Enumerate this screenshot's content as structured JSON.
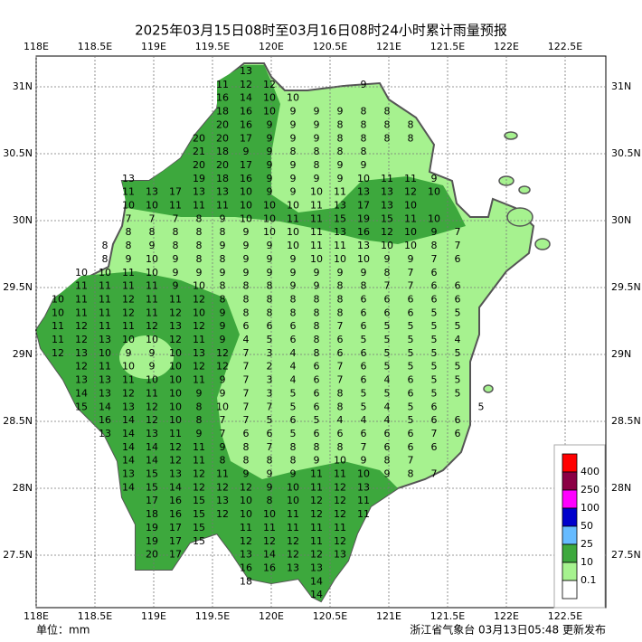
{
  "header": {
    "title": "2025年03月15日08时至03月16日08时24小时累计雨量预报"
  },
  "footer": {
    "unit": "单位：mm",
    "source": "浙江省气象台 03月13日05:48 更新发布"
  },
  "axes": {
    "lon_ticks": [
      {
        "value": 118,
        "label": "118E"
      },
      {
        "value": 118.5,
        "label": "118.5E"
      },
      {
        "value": 119,
        "label": "119E"
      },
      {
        "value": 119.5,
        "label": "119.5E"
      },
      {
        "value": 120,
        "label": "120E"
      },
      {
        "value": 120.5,
        "label": "120.5E"
      },
      {
        "value": 121,
        "label": "121E"
      },
      {
        "value": 121.5,
        "label": "121.5E"
      },
      {
        "value": 122,
        "label": "122E"
      },
      {
        "value": 122.5,
        "label": "122.5E"
      }
    ],
    "lat_ticks": [
      {
        "value": 31,
        "label": "31N"
      },
      {
        "value": 30.5,
        "label": "30.5N"
      },
      {
        "value": 30,
        "label": "30N"
      },
      {
        "value": 29.5,
        "label": "29.5N"
      },
      {
        "value": 29,
        "label": "29N"
      },
      {
        "value": 28.5,
        "label": "28.5N"
      },
      {
        "value": 28,
        "label": "28N"
      },
      {
        "value": 27.5,
        "label": "27.5N"
      }
    ]
  },
  "legend": {
    "colors": [
      "#ff0000",
      "#8b0045",
      "#ff00ff",
      "#0000cc",
      "#66bbff",
      "#3da83d",
      "#a6f28f",
      "#ffffff"
    ],
    "labels": [
      400,
      250,
      100,
      50,
      25,
      10,
      0.1
    ]
  },
  "grid": {
    "rows": [
      [
        null,
        null,
        null,
        null,
        null,
        null,
        null,
        null,
        13
      ],
      [
        null,
        null,
        null,
        null,
        null,
        null,
        null,
        11,
        12,
        12,
        null,
        null,
        null,
        9
      ],
      [
        null,
        null,
        null,
        null,
        null,
        null,
        null,
        16,
        14,
        10,
        10
      ],
      [
        null,
        null,
        null,
        null,
        null,
        null,
        null,
        18,
        16,
        10,
        9,
        9,
        9,
        8,
        8
      ],
      [
        null,
        null,
        null,
        null,
        null,
        null,
        null,
        20,
        16,
        9,
        9,
        9,
        8,
        8,
        8,
        8
      ],
      [
        null,
        null,
        null,
        null,
        null,
        null,
        20,
        20,
        17,
        9,
        9,
        9,
        8,
        8,
        8,
        8
      ],
      [
        null,
        null,
        null,
        null,
        null,
        null,
        21,
        18,
        9,
        9,
        8,
        8,
        8,
        8
      ],
      [
        null,
        null,
        null,
        null,
        null,
        null,
        20,
        20,
        17,
        9,
        9,
        8,
        9,
        9
      ],
      [
        null,
        null,
        null,
        13,
        null,
        null,
        19,
        18,
        16,
        9,
        9,
        9,
        9,
        10,
        11,
        11,
        9
      ],
      [
        null,
        null,
        null,
        11,
        13,
        17,
        13,
        13,
        10,
        9,
        9,
        10,
        11,
        13,
        13,
        12,
        10
      ],
      [
        null,
        null,
        null,
        10,
        10,
        11,
        11,
        11,
        10,
        10,
        10,
        11,
        13,
        17,
        13,
        10
      ],
      [
        null,
        null,
        null,
        7,
        7,
        7,
        8,
        9,
        10,
        10,
        11,
        11,
        15,
        19,
        15,
        11,
        10
      ],
      [
        null,
        null,
        null,
        8,
        8,
        8,
        8,
        8,
        9,
        10,
        10,
        11,
        13,
        16,
        12,
        10,
        9,
        7
      ],
      [
        null,
        null,
        8,
        8,
        9,
        8,
        8,
        9,
        9,
        9,
        10,
        11,
        11,
        13,
        10,
        10,
        8,
        7
      ],
      [
        null,
        null,
        8,
        9,
        10,
        9,
        8,
        8,
        9,
        9,
        9,
        10,
        10,
        10,
        9,
        9,
        7,
        6
      ],
      [
        null,
        10,
        10,
        11,
        10,
        9,
        9,
        9,
        9,
        9,
        9,
        9,
        9,
        9,
        8,
        7,
        6
      ],
      [
        null,
        11,
        11,
        11,
        11,
        9,
        10,
        8,
        8,
        8,
        9,
        9,
        8,
        8,
        7,
        7,
        6,
        6
      ],
      [
        10,
        11,
        11,
        12,
        11,
        11,
        12,
        8,
        8,
        8,
        8,
        8,
        8,
        6,
        6,
        6,
        6,
        6
      ],
      [
        10,
        11,
        11,
        12,
        11,
        12,
        10,
        9,
        8,
        8,
        8,
        8,
        8,
        6,
        6,
        6,
        5,
        5
      ],
      [
        11,
        12,
        11,
        11,
        12,
        13,
        12,
        9,
        6,
        6,
        6,
        8,
        7,
        6,
        5,
        5,
        5,
        5
      ],
      [
        11,
        12,
        13,
        10,
        10,
        12,
        11,
        9,
        4,
        5,
        6,
        8,
        6,
        5,
        5,
        5,
        5,
        4
      ],
      [
        12,
        13,
        10,
        9,
        9,
        10,
        13,
        12,
        7,
        3,
        4,
        8,
        6,
        6,
        5,
        5,
        5,
        5
      ],
      [
        null,
        12,
        11,
        10,
        9,
        10,
        12,
        12,
        7,
        2,
        4,
        6,
        7,
        6,
        5,
        5,
        5,
        5
      ],
      [
        null,
        13,
        13,
        11,
        10,
        10,
        11,
        9,
        7,
        3,
        4,
        6,
        7,
        6,
        4,
        6,
        5,
        5
      ],
      [
        null,
        14,
        13,
        12,
        11,
        10,
        9,
        9,
        7,
        3,
        5,
        6,
        8,
        5,
        5,
        6,
        5,
        5
      ],
      [
        null,
        15,
        14,
        13,
        12,
        10,
        8,
        10,
        7,
        7,
        5,
        6,
        8,
        5,
        4,
        5,
        6,
        null,
        5
      ],
      [
        null,
        null,
        16,
        14,
        12,
        10,
        8,
        7,
        7,
        5,
        6,
        5,
        4,
        4,
        4,
        5,
        6,
        6
      ],
      [
        null,
        null,
        13,
        14,
        13,
        11,
        9,
        7,
        6,
        6,
        5,
        6,
        6,
        6,
        6,
        6,
        7,
        6
      ],
      [
        null,
        null,
        null,
        14,
        14,
        12,
        11,
        9,
        8,
        7,
        8,
        8,
        8,
        7,
        6,
        6,
        6
      ],
      [
        null,
        null,
        null,
        14,
        14,
        12,
        11,
        8,
        8,
        8,
        8,
        9,
        10,
        9,
        8,
        7
      ],
      [
        null,
        null,
        null,
        13,
        15,
        13,
        12,
        11,
        9,
        9,
        9,
        11,
        11,
        10,
        9,
        8,
        7
      ],
      [
        null,
        null,
        null,
        14,
        15,
        14,
        12,
        12,
        12,
        9,
        10,
        11,
        12,
        13
      ],
      [
        null,
        null,
        null,
        null,
        17,
        16,
        15,
        13,
        10,
        8,
        10,
        12,
        12,
        11
      ],
      [
        null,
        null,
        null,
        null,
        18,
        16,
        15,
        12,
        10,
        10,
        11,
        12,
        12,
        11
      ],
      [
        null,
        null,
        null,
        null,
        19,
        17,
        15,
        null,
        11,
        11,
        11,
        11,
        11
      ],
      [
        null,
        null,
        null,
        null,
        19,
        17,
        15,
        null,
        12,
        12,
        12,
        11,
        12
      ],
      [
        null,
        null,
        null,
        null,
        20,
        17,
        null,
        null,
        13,
        14,
        12,
        12,
        13
      ],
      [
        null,
        null,
        null,
        null,
        null,
        null,
        null,
        null,
        16,
        16,
        13,
        13
      ],
      [
        null,
        null,
        null,
        null,
        null,
        null,
        null,
        null,
        18,
        null,
        null,
        14
      ],
      [
        null,
        null,
        null,
        null,
        null,
        null,
        null,
        null,
        null,
        null,
        null,
        14
      ]
    ]
  }
}
